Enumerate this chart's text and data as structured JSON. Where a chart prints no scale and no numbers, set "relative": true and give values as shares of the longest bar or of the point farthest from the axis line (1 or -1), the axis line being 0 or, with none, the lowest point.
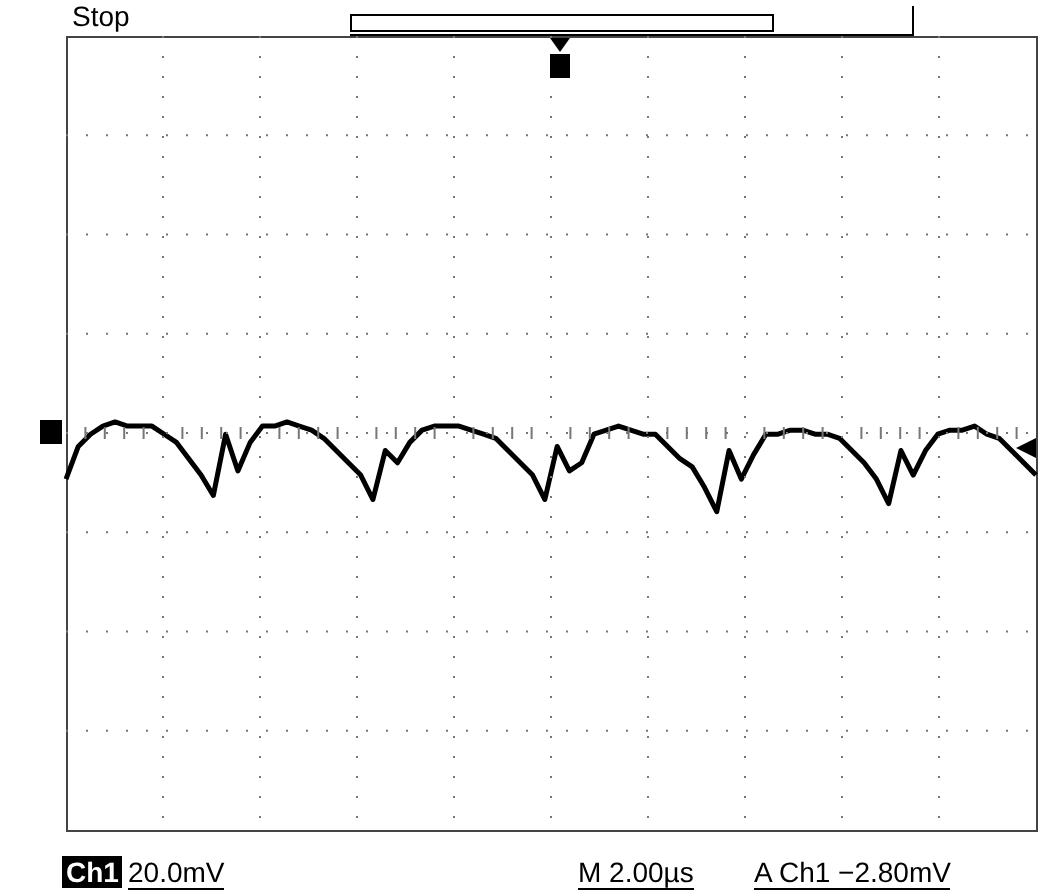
{
  "chart_data": {
    "type": "line",
    "relative": true,
    "legend": false,
    "marker": "none",
    "line_style": "solid",
    "tick_labels": false,
    "annotations": [
      "Stop",
      "Ch1",
      "20.0mV",
      "M 2.00µs",
      "A Ch1 −2.80mV"
    ],
    "categories": [
      null,
      null,
      null,
      null,
      null,
      null,
      null,
      null,
      null,
      null,
      null,
      null,
      null,
      null,
      null,
      null,
      null,
      null,
      null,
      null,
      null,
      null,
      null,
      null,
      null,
      null,
      null,
      null,
      null,
      null,
      null,
      null,
      null,
      null,
      null,
      null,
      null,
      null,
      null,
      null,
      null,
      null,
      null,
      null,
      null,
      null,
      null,
      null,
      null,
      null,
      null,
      null,
      null,
      null,
      null,
      null,
      null,
      null,
      null,
      null,
      null,
      null,
      null,
      null,
      null,
      null,
      null,
      null,
      null,
      null,
      null,
      null,
      null,
      null,
      null,
      null,
      null,
      null,
      null,
      null
    ],
    "series": [
      {
        "color": "#000000",
        "values": [
          0.86,
          0.94,
          0.97,
          0.99,
          1.0,
          0.99,
          0.99,
          0.99,
          0.97,
          0.95,
          0.91,
          0.87,
          0.82,
          0.97,
          0.88,
          0.95,
          0.99,
          0.99,
          1.0,
          0.99,
          0.98,
          0.96,
          0.93,
          0.9,
          0.87,
          0.81,
          0.93,
          0.9,
          0.95,
          0.98,
          0.99,
          0.99,
          0.99,
          0.98,
          0.97,
          0.96,
          0.93,
          0.9,
          0.87,
          0.81,
          0.94,
          0.88,
          0.9,
          0.97,
          0.98,
          0.99,
          0.98,
          0.97,
          0.97,
          0.94,
          0.91,
          0.89,
          0.84,
          0.78,
          0.93,
          0.86,
          0.92,
          0.97,
          0.97,
          0.98,
          0.98,
          0.97,
          0.97,
          0.96,
          0.93,
          0.9,
          0.86,
          0.8,
          0.93,
          0.87,
          0.93,
          0.97,
          0.98,
          0.98,
          0.99,
          0.97,
          0.96,
          0.93,
          0.9,
          0.87
        ]
      }
    ]
  }
}
